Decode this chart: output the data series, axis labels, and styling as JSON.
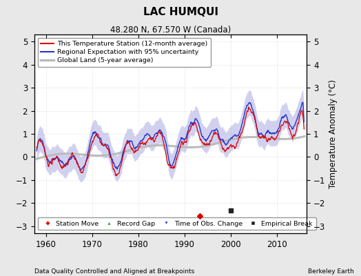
{
  "title": "LAC HUMQUI",
  "subtitle": "48.280 N, 67.570 W (Canada)",
  "xlabel_bottom": "Data Quality Controlled and Aligned at Breakpoints",
  "xlabel_right": "Berkeley Earth",
  "ylabel": "Temperature Anomaly (°C)",
  "xlim": [
    1957.5,
    2016.5
  ],
  "ylim": [
    -3.3,
    5.3
  ],
  "yticks": [
    -3,
    -2,
    -1,
    0,
    1,
    2,
    3,
    4,
    5
  ],
  "xticks": [
    1960,
    1970,
    1980,
    1990,
    2000,
    2010
  ],
  "bg_color": "#e8e8e8",
  "plot_bg_color": "#ffffff",
  "station_line_color": "#dd0000",
  "regional_line_color": "#2233cc",
  "regional_fill_color": "#9999dd",
  "global_land_color": "#bbbbbb",
  "station_move_x": 1993.3,
  "station_move_y": -2.55,
  "empirical_break_x": 2000.0,
  "empirical_break_y": -2.3,
  "legend_items": [
    {
      "label": "This Temperature Station (12-month average)",
      "color": "#dd0000",
      "lw": 1.5
    },
    {
      "label": "Regional Expectation with 95% uncertainty",
      "color": "#2233cc",
      "lw": 1.5
    },
    {
      "label": "Global Land (5-year average)",
      "color": "#bbbbbb",
      "lw": 2.5
    }
  ],
  "legend_markers": [
    {
      "label": "Station Move",
      "color": "#dd0000",
      "marker": "D"
    },
    {
      "label": "Record Gap",
      "color": "#228822",
      "marker": "^"
    },
    {
      "label": "Time of Obs. Change",
      "color": "#2233cc",
      "marker": "v"
    },
    {
      "label": "Empirical Break",
      "color": "#222222",
      "marker": "s"
    }
  ]
}
